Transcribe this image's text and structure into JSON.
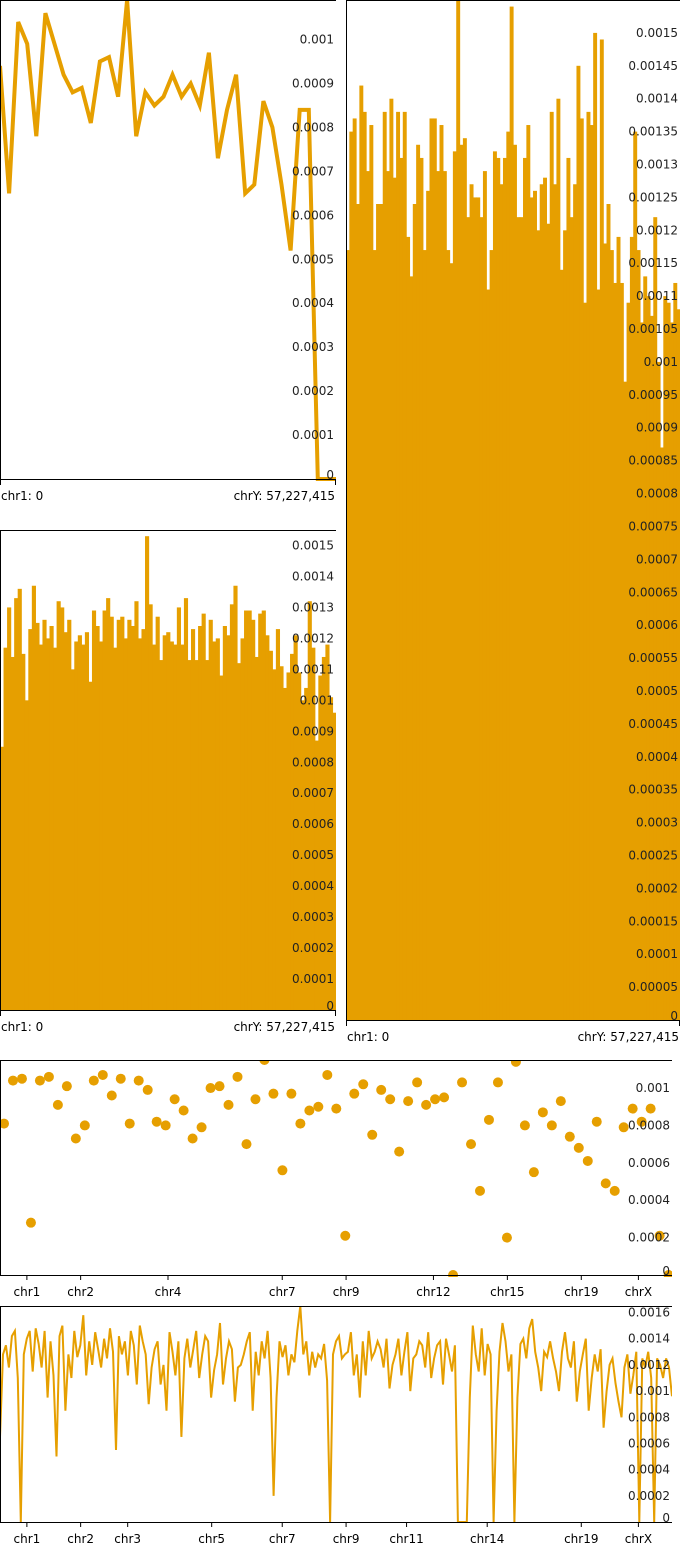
{
  "colors": {
    "series": "#e69f00",
    "axis": "#000000",
    "text": "#222222",
    "background": "#ffffff"
  },
  "chart_data": [
    {
      "id": "line-chart",
      "type": "line",
      "title": "",
      "ylim": [
        0,
        0.00109
      ],
      "yticks": [
        "0",
        "0.0001",
        "0.0002",
        "0.0003",
        "0.0004",
        "0.0005",
        "0.0006",
        "0.0007",
        "0.0008",
        "0.0009",
        "0.001"
      ],
      "ytick_values": [
        0,
        0.0001,
        0.0002,
        0.0003,
        0.0004,
        0.0005,
        0.0006,
        0.0007,
        0.0008,
        0.0009,
        0.001
      ],
      "x_start_label": "chr1: 0",
      "x_end_label": "chrY: 57,227,415",
      "values": [
        0.00094,
        0.00065,
        0.00104,
        0.00099,
        0.00078,
        0.00106,
        0.00099,
        0.00092,
        0.00088,
        0.00089,
        0.00081,
        0.00095,
        0.00096,
        0.00087,
        0.00109,
        0.00078,
        0.00088,
        0.00085,
        0.00087,
        0.00092,
        0.00087,
        0.0009,
        0.00085,
        0.00097,
        0.00073,
        0.00084,
        0.00092,
        0.00065,
        0.00067,
        0.00086,
        0.0008,
        0.00067,
        0.00052,
        0.00084,
        0.00084,
        0.0,
        0.0,
        0.0
      ]
    },
    {
      "id": "bar-chart-tall",
      "type": "bar",
      "title": "",
      "ylim": [
        0,
        0.00155
      ],
      "yticks": [
        "0",
        "0.00005",
        "0.0001",
        "0.00015",
        "0.0002",
        "0.00025",
        "0.0003",
        "0.00035",
        "0.0004",
        "0.00045",
        "0.0005",
        "0.00055",
        "0.0006",
        "0.00065",
        "0.0007",
        "0.00075",
        "0.0008",
        "0.00085",
        "0.0009",
        "0.00095",
        "0.001",
        "0.00105",
        "0.0011",
        "0.00115",
        "0.0012",
        "0.00125",
        "0.0013",
        "0.00135",
        "0.0014",
        "0.00145",
        "0.0015"
      ],
      "ytick_values": [
        0,
        5e-05,
        0.0001,
        0.00015,
        0.0002,
        0.00025,
        0.0003,
        0.00035,
        0.0004,
        0.00045,
        0.0005,
        0.00055,
        0.0006,
        0.00065,
        0.0007,
        0.00075,
        0.0008,
        0.00085,
        0.0009,
        0.00095,
        0.001,
        0.00105,
        0.0011,
        0.00115,
        0.0012,
        0.00125,
        0.0013,
        0.00135,
        0.0014,
        0.00145,
        0.0015
      ],
      "x_start_label": "chr1: 0",
      "x_end_label": "chrY: 57,227,415",
      "values": [
        0.00117,
        0.00135,
        0.00137,
        0.00124,
        0.00142,
        0.00138,
        0.00129,
        0.00136,
        0.00117,
        0.00124,
        0.00124,
        0.00138,
        0.00129,
        0.0014,
        0.00128,
        0.00138,
        0.00131,
        0.00138,
        0.00119,
        0.00113,
        0.00124,
        0.00133,
        0.00131,
        0.00117,
        0.00126,
        0.00137,
        0.00137,
        0.00129,
        0.00136,
        0.00129,
        0.00117,
        0.00115,
        0.00132,
        0.00155,
        0.00133,
        0.00134,
        0.00122,
        0.00127,
        0.00125,
        0.00125,
        0.00122,
        0.00129,
        0.00111,
        0.00117,
        0.00132,
        0.00131,
        0.00127,
        0.00131,
        0.00135,
        0.00154,
        0.00133,
        0.00122,
        0.00122,
        0.00131,
        0.00136,
        0.00125,
        0.00126,
        0.0012,
        0.00127,
        0.00128,
        0.00121,
        0.00138,
        0.00127,
        0.0014,
        0.00114,
        0.0012,
        0.00131,
        0.00122,
        0.00127,
        0.00145,
        0.00137,
        0.00109,
        0.00138,
        0.00136,
        0.0015,
        0.00111,
        0.00149,
        0.00118,
        0.00124,
        0.00117,
        0.00112,
        0.00119,
        0.00112,
        0.00097,
        0.00109,
        0.00119,
        0.00135,
        0.00117,
        0.00106,
        0.00113,
        0.0011,
        0.00107,
        0.00122,
        0.001,
        0.00087,
        0.0011,
        0.00109,
        0.00106,
        0.00112,
        0.00108
      ]
    },
    {
      "id": "bar-chart-short",
      "type": "bar",
      "title": "",
      "ylim": [
        0,
        0.00155
      ],
      "yticks": [
        "0",
        "0.0001",
        "0.0002",
        "0.0003",
        "0.0004",
        "0.0005",
        "0.0006",
        "0.0007",
        "0.0008",
        "0.0009",
        "0.001",
        "0.0011",
        "0.0012",
        "0.0013",
        "0.0014",
        "0.0015"
      ],
      "ytick_values": [
        0,
        0.0001,
        0.0002,
        0.0003,
        0.0004,
        0.0005,
        0.0006,
        0.0007,
        0.0008,
        0.0009,
        0.001,
        0.0011,
        0.0012,
        0.0013,
        0.0014,
        0.0015
      ],
      "x_start_label": "chr1: 0",
      "x_end_label": "chrY: 57,227,415",
      "values": [
        0.00085,
        0.00117,
        0.0013,
        0.00114,
        0.00133,
        0.00136,
        0.00115,
        0.001,
        0.00123,
        0.00137,
        0.00125,
        0.00118,
        0.00126,
        0.0012,
        0.00124,
        0.00117,
        0.00132,
        0.0013,
        0.00122,
        0.00126,
        0.0011,
        0.00119,
        0.00121,
        0.00118,
        0.00122,
        0.00106,
        0.00129,
        0.00124,
        0.00119,
        0.00129,
        0.00133,
        0.00127,
        0.00117,
        0.00126,
        0.00127,
        0.0012,
        0.00126,
        0.00124,
        0.00132,
        0.0012,
        0.00123,
        0.00153,
        0.00131,
        0.00118,
        0.00127,
        0.00113,
        0.00121,
        0.00122,
        0.00119,
        0.00118,
        0.0013,
        0.00118,
        0.00133,
        0.00113,
        0.00123,
        0.00113,
        0.00124,
        0.00128,
        0.00113,
        0.00126,
        0.00119,
        0.0012,
        0.00108,
        0.00124,
        0.00121,
        0.00131,
        0.00137,
        0.00112,
        0.0012,
        0.00129,
        0.00129,
        0.00126,
        0.00114,
        0.00128,
        0.00129,
        0.00121,
        0.00116,
        0.0011,
        0.00123,
        0.00111,
        0.00104,
        0.00109,
        0.00115,
        0.00121,
        0.00109,
        0.001,
        0.00104,
        0.00132,
        0.00117,
        0.00087,
        0.00108,
        0.00114,
        0.00118,
        0.00101,
        0.00096
      ]
    },
    {
      "id": "scatter-chart",
      "type": "scatter",
      "title": "",
      "ylim": [
        0,
        0.00115
      ],
      "yticks": [
        "0",
        "0.0002",
        "0.0004",
        "0.0006",
        "0.0008",
        "0.001"
      ],
      "ytick_values": [
        0,
        0.0002,
        0.0004,
        0.0006,
        0.0008,
        0.001
      ],
      "xticks": [
        "chr1",
        "chr2",
        "chr4",
        "chr7",
        "chr9",
        "chr12",
        "chr15",
        "chr19",
        "chrX"
      ],
      "xtick_fractions": [
        0.04,
        0.12,
        0.25,
        0.42,
        0.515,
        0.645,
        0.755,
        0.865,
        0.95
      ],
      "values": [
        0.00081,
        0.00104,
        0.00105,
        0.00028,
        0.00104,
        0.00106,
        0.00091,
        0.00101,
        0.00073,
        0.0008,
        0.00104,
        0.00107,
        0.00096,
        0.00105,
        0.00081,
        0.00104,
        0.00099,
        0.00082,
        0.0008,
        0.00094,
        0.00088,
        0.00073,
        0.00079,
        0.001,
        0.00101,
        0.00091,
        0.00106,
        0.0007,
        0.00094,
        0.00115,
        0.00097,
        0.00056,
        0.00097,
        0.00081,
        0.00088,
        0.0009,
        0.00107,
        0.00089,
        0.00021,
        0.00097,
        0.00102,
        0.00075,
        0.00099,
        0.00094,
        0.00066,
        0.00093,
        0.00103,
        0.00091,
        0.00094,
        0.00095,
        0.0,
        0.00103,
        0.0007,
        0.00045,
        0.00083,
        0.00103,
        0.0002,
        0.00114,
        0.0008,
        0.00055,
        0.00087,
        0.0008,
        0.00093,
        0.00074,
        0.00068,
        0.00061,
        0.00082,
        0.00049,
        0.00045,
        0.00079,
        0.00089,
        0.00082,
        0.00089,
        0.00021,
        0.0
      ]
    },
    {
      "id": "line-chart-bottom",
      "type": "line",
      "title": "",
      "ylim": [
        0,
        0.00165
      ],
      "yticks": [
        "0",
        "0.0002",
        "0.0004",
        "0.0006",
        "0.0008",
        "0.001",
        "0.0012",
        "0.0014",
        "0.0016"
      ],
      "ytick_values": [
        0,
        0.0002,
        0.0004,
        0.0006,
        0.0008,
        0.001,
        0.0012,
        0.0014,
        0.0016
      ],
      "xticks": [
        "chr1",
        "chr2",
        "chr3",
        "chr5",
        "chr7",
        "chr9",
        "chr11",
        "chr14",
        "chr19",
        "chrX"
      ],
      "xtick_fractions": [
        0.04,
        0.12,
        0.19,
        0.315,
        0.42,
        0.515,
        0.605,
        0.725,
        0.865,
        0.95
      ],
      "values": [
        0.00065,
        0.00128,
        0.00135,
        0.00118,
        0.00142,
        0.00146,
        0.0011,
        0.0,
        0.00128,
        0.0014,
        0.00146,
        0.00115,
        0.00148,
        0.00136,
        0.00118,
        0.00146,
        0.00095,
        0.00138,
        0.00112,
        0.0005,
        0.00142,
        0.0015,
        0.00085,
        0.00128,
        0.0011,
        0.00146,
        0.00126,
        0.00135,
        0.00158,
        0.00112,
        0.00138,
        0.0012,
        0.00145,
        0.00132,
        0.00118,
        0.0014,
        0.00125,
        0.00148,
        0.0013,
        0.00055,
        0.00142,
        0.00128,
        0.00138,
        0.00112,
        0.00146,
        0.00135,
        0.00105,
        0.0015,
        0.00138,
        0.00128,
        0.0009,
        0.00118,
        0.00132,
        0.00138,
        0.00105,
        0.0012,
        0.00085,
        0.00145,
        0.0013,
        0.00112,
        0.00138,
        0.00065,
        0.00125,
        0.0014,
        0.00118,
        0.00132,
        0.00146,
        0.0011,
        0.00128,
        0.00142,
        0.00138,
        0.00095,
        0.00116,
        0.00128,
        0.00152,
        0.00105,
        0.00125,
        0.00138,
        0.00132,
        0.00092,
        0.00118,
        0.0012,
        0.00128,
        0.00138,
        0.00145,
        0.00085,
        0.0013,
        0.00112,
        0.00138,
        0.00125,
        0.00146,
        0.0011,
        0.0002,
        0.00095,
        0.00138,
        0.00126,
        0.00135,
        0.00112,
        0.00128,
        0.00122,
        0.00146,
        0.00165,
        0.00128,
        0.00138,
        0.00112,
        0.0013,
        0.00118,
        0.00128,
        0.00125,
        0.00136,
        0.00108,
        0.0,
        0.00128,
        0.00138,
        0.00142,
        0.00125,
        0.00128,
        0.0013,
        0.00145,
        0.00112,
        0.00128,
        0.00095,
        0.00138,
        0.00112,
        0.00146,
        0.00125,
        0.0013,
        0.00138,
        0.00132,
        0.00118,
        0.0014,
        0.00102,
        0.0012,
        0.00128,
        0.0014,
        0.00112,
        0.0013,
        0.00145,
        0.001,
        0.00125,
        0.00128,
        0.00138,
        0.00135,
        0.00118,
        0.00145,
        0.0011,
        0.00125,
        0.00135,
        0.00138,
        0.00105,
        0.0014,
        0.00128,
        0.00115,
        0.00135,
        0.0,
        0.0,
        0.0,
        0.0,
        0.00095,
        0.0015,
        0.00128,
        0.00115,
        0.00148,
        0.00112,
        0.00136,
        0.00128,
        0.0,
        0.00085,
        0.0013,
        0.00152,
        0.00138,
        0.00115,
        0.00128,
        0.0,
        0.00095,
        0.00136,
        0.0014,
        0.00125,
        0.00148,
        0.00155,
        0.0013,
        0.00118,
        0.001,
        0.0013,
        0.00126,
        0.00138,
        0.00125,
        0.00115,
        0.001,
        0.0013,
        0.00145,
        0.00125,
        0.00118,
        0.00138,
        0.00092,
        0.00115,
        0.00128,
        0.0014,
        0.00085,
        0.0011,
        0.00128,
        0.00115,
        0.00132,
        0.00072,
        0.001,
        0.0012,
        0.00125,
        0.00106,
        0.00092,
        0.0008,
        0.00118,
        0.00128,
        0.00098,
        0.00112,
        0.0013,
        0.0,
        0.00125,
        0.00118,
        0.0013,
        0.0011,
        0.0,
        0.00125,
        0.0012,
        0.0011,
        0.00125,
        0.00118,
        0.00096
      ]
    }
  ]
}
